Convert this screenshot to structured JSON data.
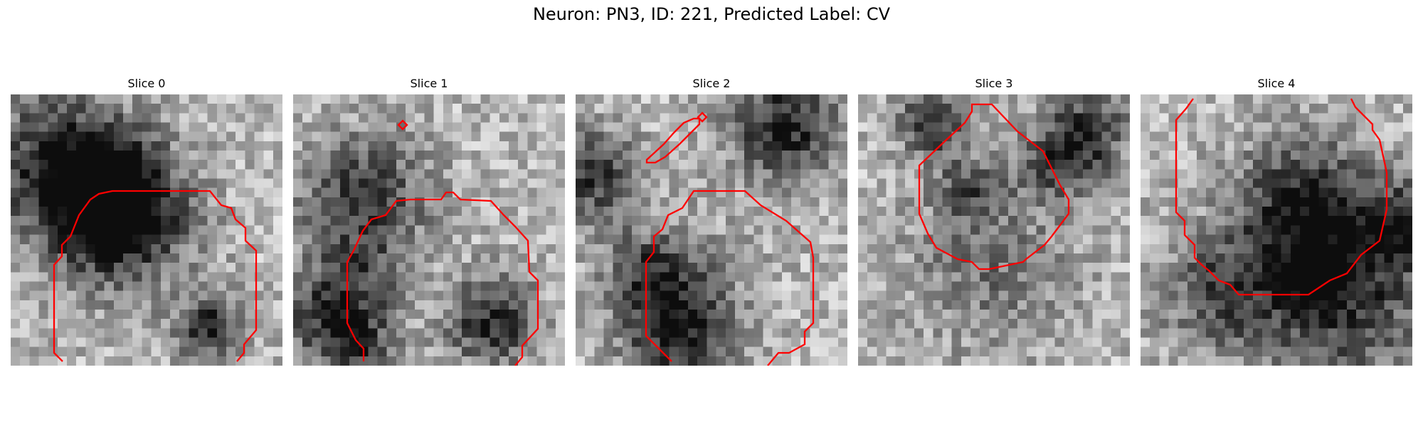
{
  "figure": {
    "title": "Neuron: PN3, ID: 221, Predicted Label: CV",
    "contour_color": "#ff0000",
    "panels": [
      {
        "title": "Slice 0"
      },
      {
        "title": "Slice 1"
      },
      {
        "title": "Slice 2"
      },
      {
        "title": "Slice 3"
      },
      {
        "title": "Slice 4"
      }
    ]
  }
}
